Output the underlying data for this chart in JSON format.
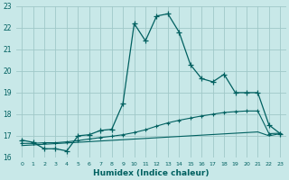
{
  "title": "",
  "xlabel": "Humidex (Indice chaleur)",
  "bg_color": "#c8e8e8",
  "grid_color": "#a0c8c8",
  "line_color": "#006060",
  "xlim": [
    -0.5,
    23.5
  ],
  "ylim": [
    16,
    23
  ],
  "yticks": [
    16,
    17,
    18,
    19,
    20,
    21,
    22,
    23
  ],
  "xticks": [
    0,
    1,
    2,
    3,
    4,
    5,
    6,
    7,
    8,
    9,
    10,
    11,
    12,
    13,
    14,
    15,
    16,
    17,
    18,
    19,
    20,
    21,
    22,
    23
  ],
  "line1_x": [
    0,
    1,
    2,
    3,
    4,
    5,
    6,
    7,
    8,
    9,
    10,
    11,
    12,
    13,
    14,
    15,
    16,
    17,
    18,
    19,
    20,
    21,
    22,
    23
  ],
  "line1_y": [
    16.8,
    16.7,
    16.4,
    16.4,
    16.3,
    17.0,
    17.05,
    17.25,
    17.3,
    18.5,
    22.2,
    21.4,
    22.55,
    22.65,
    21.8,
    20.3,
    19.65,
    19.5,
    19.85,
    19.0,
    19.0,
    19.0,
    17.5,
    17.1
  ],
  "line2_x": [
    0,
    1,
    2,
    3,
    4,
    5,
    6,
    7,
    8,
    9,
    10,
    11,
    12,
    13,
    14,
    15,
    16,
    17,
    18,
    19,
    20,
    21,
    22,
    23
  ],
  "line2_y": [
    16.55,
    16.58,
    16.61,
    16.64,
    16.67,
    16.7,
    16.73,
    16.76,
    16.79,
    16.82,
    16.85,
    16.88,
    16.91,
    16.94,
    16.97,
    17.0,
    17.03,
    17.06,
    17.09,
    17.12,
    17.15,
    17.18,
    17.0,
    17.1
  ],
  "line3_x": [
    0,
    1,
    2,
    3,
    4,
    5,
    6,
    7,
    8,
    9,
    10,
    11,
    12,
    13,
    14,
    15,
    16,
    17,
    18,
    19,
    20,
    21,
    22,
    23
  ],
  "line3_y": [
    16.65,
    16.65,
    16.68,
    16.68,
    16.72,
    16.78,
    16.85,
    16.92,
    16.98,
    17.05,
    17.15,
    17.28,
    17.45,
    17.6,
    17.72,
    17.82,
    17.92,
    18.0,
    18.08,
    18.12,
    18.15,
    18.15,
    17.1,
    17.12
  ]
}
